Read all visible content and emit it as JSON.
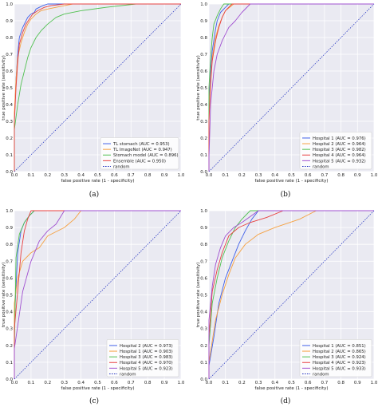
{
  "chart_data": [
    {
      "panel": "(a)",
      "type": "line",
      "xlabel": "false positive rate (1 - specificity)",
      "ylabel": "true positive rate (sensitivity)",
      "xlim": [
        0,
        1
      ],
      "ylim": [
        0,
        1
      ],
      "xticks": [
        "0.0",
        "0.1",
        "0.2",
        "0.3",
        "0.4",
        "0.5",
        "0.6",
        "0.7",
        "0.8",
        "0.9",
        "1.0"
      ],
      "yticks": [
        "0.0",
        "0.1",
        "0.2",
        "0.3",
        "0.4",
        "0.5",
        "0.6",
        "0.7",
        "0.8",
        "0.9",
        "1.0"
      ],
      "grid": true,
      "legend_position": "lower-right",
      "series": [
        {
          "name": "TL stomach (AUC = 0.953)",
          "color": "#4060e8",
          "x": [
            0,
            0,
            0.01,
            0.02,
            0.03,
            0.05,
            0.07,
            0.08,
            0.1,
            0.12,
            0.13,
            0.15,
            0.17,
            0.2,
            0.25,
            1.0
          ],
          "y": [
            0,
            0.3,
            0.55,
            0.7,
            0.8,
            0.86,
            0.9,
            0.92,
            0.94,
            0.95,
            0.97,
            0.98,
            0.99,
            1.0,
            1.0,
            1.0
          ]
        },
        {
          "name": "TL ImageNet (AUC = 0.947)",
          "color": "#f5a040",
          "x": [
            0,
            0,
            0.01,
            0.02,
            0.04,
            0.06,
            0.08,
            0.1,
            0.13,
            0.16,
            0.2,
            0.25,
            0.3,
            0.35,
            1.0
          ],
          "y": [
            0,
            0.35,
            0.55,
            0.68,
            0.77,
            0.83,
            0.88,
            0.91,
            0.94,
            0.96,
            0.97,
            0.98,
            0.99,
            1.0,
            1.0
          ]
        },
        {
          "name": "Stomach model (AUC = 0.896)",
          "color": "#50c050",
          "x": [
            0,
            0,
            0.02,
            0.04,
            0.06,
            0.08,
            0.1,
            0.13,
            0.16,
            0.2,
            0.25,
            0.3,
            0.4,
            0.55,
            0.73,
            1.0
          ],
          "y": [
            0,
            0.25,
            0.4,
            0.52,
            0.6,
            0.68,
            0.74,
            0.8,
            0.84,
            0.88,
            0.92,
            0.94,
            0.96,
            0.98,
            1.0,
            1.0
          ]
        },
        {
          "name": "Ensemble (AUC = 0.950)",
          "color": "#e84040",
          "x": [
            0,
            0,
            0.01,
            0.02,
            0.03,
            0.05,
            0.07,
            0.09,
            0.11,
            0.14,
            0.18,
            0.22,
            0.3,
            1.0
          ],
          "y": [
            0,
            0.3,
            0.5,
            0.65,
            0.76,
            0.83,
            0.88,
            0.91,
            0.94,
            0.96,
            0.98,
            0.99,
            1.0,
            1.0
          ]
        },
        {
          "name": "random",
          "color": "#2030c0",
          "dashed": true,
          "x": [
            0,
            1
          ],
          "y": [
            0,
            1
          ]
        }
      ]
    },
    {
      "panel": "(b)",
      "type": "line",
      "xlabel": "false positive rate (1 - specificity)",
      "ylabel": "true positive rate (sensitivity)",
      "xlim": [
        0,
        1
      ],
      "ylim": [
        0,
        1
      ],
      "xticks": [
        "0.0",
        "0.1",
        "0.2",
        "0.3",
        "0.4",
        "0.5",
        "0.6",
        "0.7",
        "0.8",
        "0.9",
        "1.0"
      ],
      "yticks": [
        "0.0",
        "0.1",
        "0.2",
        "0.3",
        "0.4",
        "0.5",
        "0.6",
        "0.7",
        "0.8",
        "0.9",
        "1.0"
      ],
      "grid": true,
      "legend_position": "lower-right",
      "series": [
        {
          "name": "Hospital 1 (AUC = 0.976)",
          "color": "#4060e8",
          "x": [
            0,
            0,
            0.01,
            0.02,
            0.04,
            0.05,
            0.07,
            0.1,
            0.12,
            1.0
          ],
          "y": [
            0,
            0.4,
            0.6,
            0.72,
            0.85,
            0.9,
            0.95,
            0.98,
            1.0,
            1.0
          ]
        },
        {
          "name": "Hospital 2 (AUC = 0.964)",
          "color": "#f5a040",
          "x": [
            0,
            0,
            0.01,
            0.02,
            0.04,
            0.06,
            0.08,
            0.1,
            0.15,
            1.0
          ],
          "y": [
            0,
            0.35,
            0.55,
            0.68,
            0.8,
            0.87,
            0.92,
            0.96,
            1.0,
            1.0
          ]
        },
        {
          "name": "Hospital 3 (AUC = 0.982)",
          "color": "#50c050",
          "x": [
            0,
            0,
            0.01,
            0.02,
            0.03,
            0.05,
            0.07,
            0.09,
            1.0
          ],
          "y": [
            0,
            0.5,
            0.68,
            0.8,
            0.88,
            0.93,
            0.97,
            1.0,
            1.0
          ]
        },
        {
          "name": "Hospital 4 (AUC = 0.964)",
          "color": "#e84040",
          "x": [
            0,
            0,
            0.01,
            0.02,
            0.04,
            0.06,
            0.08,
            0.1,
            0.14,
            1.0
          ],
          "y": [
            0,
            0.3,
            0.52,
            0.66,
            0.78,
            0.86,
            0.92,
            0.96,
            1.0,
            1.0
          ]
        },
        {
          "name": "Hospital 5 (AUC = 0.932)",
          "color": "#a050d0",
          "x": [
            0,
            0,
            0.01,
            0.03,
            0.05,
            0.08,
            0.12,
            0.16,
            0.2,
            0.25,
            1.0
          ],
          "y": [
            0,
            0.08,
            0.4,
            0.6,
            0.7,
            0.78,
            0.86,
            0.9,
            0.95,
            1.0,
            1.0
          ]
        },
        {
          "name": "random",
          "color": "#2030c0",
          "dashed": true,
          "x": [
            0,
            1
          ],
          "y": [
            0,
            1
          ]
        }
      ]
    },
    {
      "panel": "(c)",
      "type": "line",
      "xlabel": "false positive rate (1 - specificity)",
      "ylabel": "true positive rate (sensitivity)",
      "xlim": [
        0,
        1
      ],
      "ylim": [
        0,
        1
      ],
      "xticks": [
        "0.0",
        "0.1",
        "0.2",
        "0.3",
        "0.4",
        "0.5",
        "0.6",
        "0.7",
        "0.8",
        "0.9",
        "1.0"
      ],
      "yticks": [
        "0.0",
        "0.1",
        "0.2",
        "0.3",
        "0.4",
        "0.5",
        "0.6",
        "0.7",
        "0.8",
        "0.9",
        "1.0"
      ],
      "grid": true,
      "legend_position": "lower-right",
      "series": [
        {
          "name": "Hospital 2 (AUC = 0.973)",
          "color": "#4060e8",
          "x": [
            0,
            0,
            0.02,
            0.04,
            0.06,
            0.09,
            0.12,
            1.0
          ],
          "y": [
            0,
            0.35,
            0.75,
            0.88,
            0.93,
            0.97,
            1.0,
            1.0
          ]
        },
        {
          "name": "Hospital 1 (AUC = 0.903)",
          "color": "#f5a040",
          "x": [
            0,
            0,
            0.02,
            0.05,
            0.1,
            0.15,
            0.2,
            0.3,
            0.36,
            0.4,
            1.0
          ],
          "y": [
            0,
            0.45,
            0.6,
            0.7,
            0.75,
            0.78,
            0.85,
            0.9,
            0.95,
            1.0,
            1.0
          ]
        },
        {
          "name": "Hospital 3 (AUC = 0.983)",
          "color": "#50c050",
          "x": [
            0,
            0,
            0.01,
            0.03,
            0.06,
            0.09,
            0.12,
            1.0
          ],
          "y": [
            0,
            0.18,
            0.72,
            0.86,
            0.93,
            0.97,
            1.0,
            1.0
          ]
        },
        {
          "name": "Hospital 4 (AUC = 0.970)",
          "color": "#e84040",
          "x": [
            0,
            0,
            0.02,
            0.04,
            0.06,
            0.08,
            0.1,
            1.0
          ],
          "y": [
            0,
            0.3,
            0.52,
            0.75,
            0.88,
            0.95,
            1.0,
            1.0
          ]
        },
        {
          "name": "Hospital 5 (AUC = 0.923)",
          "color": "#a050d0",
          "x": [
            0,
            0,
            0.05,
            0.1,
            0.15,
            0.2,
            0.25,
            0.3,
            1.0
          ],
          "y": [
            0,
            0.18,
            0.52,
            0.7,
            0.82,
            0.88,
            0.92,
            1.0,
            1.0
          ]
        },
        {
          "name": "random",
          "color": "#2030c0",
          "dashed": true,
          "x": [
            0,
            1
          ],
          "y": [
            0,
            1
          ]
        }
      ]
    },
    {
      "panel": "(d)",
      "type": "line",
      "xlabel": "false positive rate (1 - specificity)",
      "ylabel": "true positive rate (sensitivity)",
      "xlim": [
        0,
        1
      ],
      "ylim": [
        0,
        1
      ],
      "xticks": [
        "0.0",
        "0.1",
        "0.2",
        "0.3",
        "0.4",
        "0.5",
        "0.6",
        "0.7",
        "0.8",
        "0.9",
        "1.0"
      ],
      "yticks": [
        "0.0",
        "0.1",
        "0.2",
        "0.3",
        "0.4",
        "0.5",
        "0.6",
        "0.7",
        "0.8",
        "0.9",
        "1.0"
      ],
      "grid": true,
      "legend_position": "lower-right",
      "series": [
        {
          "name": "Hospital 1 (AUC = 0.851)",
          "color": "#4060e8",
          "x": [
            0,
            0,
            0.03,
            0.06,
            0.1,
            0.14,
            0.18,
            0.22,
            0.26,
            0.3,
            1.0
          ],
          "y": [
            0,
            0.08,
            0.25,
            0.45,
            0.6,
            0.7,
            0.8,
            0.88,
            0.95,
            1.0,
            1.0
          ]
        },
        {
          "name": "Hospital 2 (AUC = 0.865)",
          "color": "#f5a040",
          "x": [
            0,
            0,
            0.04,
            0.08,
            0.12,
            0.16,
            0.22,
            0.3,
            0.4,
            0.55,
            0.65,
            1.0
          ],
          "y": [
            0,
            0.1,
            0.35,
            0.5,
            0.62,
            0.72,
            0.8,
            0.86,
            0.9,
            0.95,
            1.0,
            1.0
          ]
        },
        {
          "name": "Hospital 3 (AUC = 0.924)",
          "color": "#50c050",
          "x": [
            0,
            0,
            0.02,
            0.05,
            0.08,
            0.12,
            0.16,
            0.2,
            0.25,
            1.0
          ],
          "y": [
            0,
            0.2,
            0.45,
            0.6,
            0.72,
            0.82,
            0.9,
            0.95,
            1.0,
            1.0
          ]
        },
        {
          "name": "Hospital 4 (AUC = 0.923)",
          "color": "#e84040",
          "x": [
            0,
            0,
            0.02,
            0.05,
            0.08,
            0.12,
            0.18,
            0.25,
            0.35,
            0.45,
            1.0
          ],
          "y": [
            0,
            0.25,
            0.52,
            0.65,
            0.75,
            0.85,
            0.9,
            0.93,
            0.96,
            1.0,
            1.0
          ]
        },
        {
          "name": "Hospital 5 (AUC = 0.933)",
          "color": "#a050d0",
          "x": [
            0,
            0,
            0.02,
            0.04,
            0.07,
            0.1,
            0.15,
            0.2,
            0.3,
            1.0
          ],
          "y": [
            0,
            0.35,
            0.55,
            0.68,
            0.78,
            0.85,
            0.9,
            0.93,
            1.0,
            1.0
          ]
        },
        {
          "name": "random",
          "color": "#2030c0",
          "dashed": true,
          "x": [
            0,
            1
          ],
          "y": [
            0,
            1
          ]
        }
      ]
    }
  ],
  "captions": [
    "(a)",
    "(b)",
    "(c)",
    "(d)"
  ],
  "colors": {
    "plot_bg": "#eaeaf2",
    "grid": "#ffffff",
    "page_bg": "#ffffff"
  }
}
